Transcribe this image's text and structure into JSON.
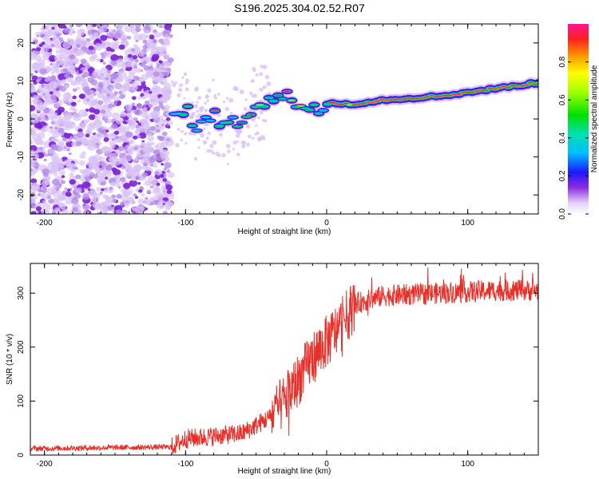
{
  "title": "S196.2025.304.02.52.R07",
  "chart_data": [
    {
      "type": "heatmap",
      "name": "spectrogram",
      "xlabel": "Height of straight line (km)",
      "ylabel": "Frequency (Hz)",
      "xlim": [
        -210,
        150
      ],
      "ylim": [
        -25,
        25
      ],
      "xticks": [
        -200,
        -100,
        0,
        100
      ],
      "yticks": [
        -20,
        -10,
        0,
        10,
        20
      ],
      "colorbar": {
        "label": "Normalized spectral amplitude",
        "range": [
          0,
          1
        ],
        "ticks": [
          0.0,
          0.2,
          0.4,
          0.6,
          0.8
        ]
      },
      "noise_region": [
        -210,
        -110
      ],
      "ridge": {
        "x": [
          -108,
          -100,
          -90,
          -80,
          -70,
          -60,
          -50,
          -40,
          -30,
          -20,
          -10,
          0,
          10,
          20,
          40,
          60,
          80,
          100,
          120,
          140,
          150
        ],
        "y": [
          1,
          2,
          -2,
          1,
          -2,
          0,
          4,
          5,
          6,
          4,
          3,
          4,
          4,
          4,
          5,
          5.5,
          6,
          7,
          8,
          9,
          9.5
        ]
      }
    },
    {
      "type": "line",
      "name": "snr",
      "xlabel": "Height of straight line (km)",
      "ylabel": "SNR (10 * v/v)",
      "xlim": [
        -210,
        150
      ],
      "ylim": [
        0,
        355
      ],
      "xticks": [
        -200,
        -100,
        0,
        100
      ],
      "yticks": [
        0,
        100,
        200,
        300
      ],
      "color": "#e8302a",
      "trend": {
        "x": [
          -210,
          -110,
          -100,
          -60,
          -40,
          -30,
          -20,
          -10,
          0,
          10,
          20,
          40,
          80,
          120,
          150
        ],
        "y": [
          12,
          15,
          30,
          40,
          70,
          100,
          140,
          180,
          210,
          240,
          280,
          295,
          300,
          305,
          305
        ]
      }
    }
  ]
}
